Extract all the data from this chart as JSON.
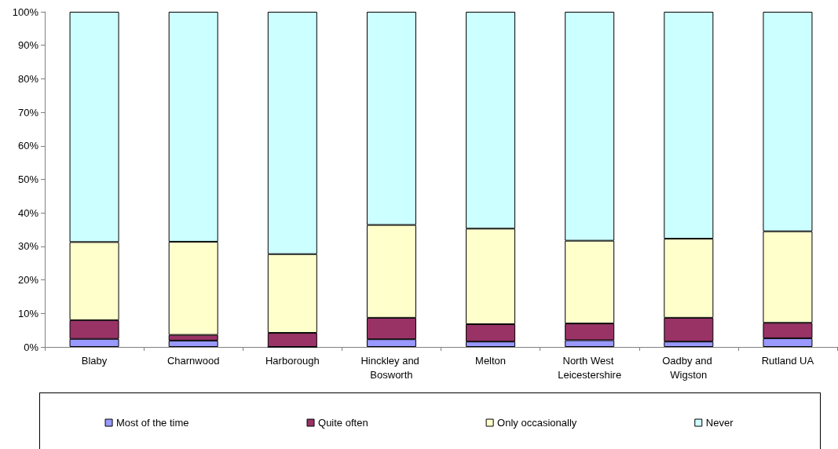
{
  "chart_data": {
    "type": "bar",
    "stacked": true,
    "categories": [
      "Blaby",
      "Charnwood",
      "Harborough",
      "Hinckley and Bosworth",
      "Melton",
      "North West Leicestershire",
      "Oadby and Wigston",
      "Rutland UA"
    ],
    "series": [
      {
        "name": "Most of the time",
        "color": "#9999ff",
        "values": [
          2.4,
          1.9,
          0,
          2.3,
          1.6,
          2.0,
          1.6,
          2.6
        ]
      },
      {
        "name": "Quite often",
        "color": "#993366",
        "values": [
          5.6,
          1.7,
          4.2,
          6.4,
          5.2,
          5.0,
          7.1,
          4.6
        ]
      },
      {
        "name": "Only occasionally",
        "color": "#ffffcc",
        "values": [
          23.3,
          27.8,
          23.5,
          27.7,
          28.5,
          24.7,
          23.6,
          27.3
        ]
      },
      {
        "name": "Never",
        "color": "#ccffff",
        "values": [
          68.7,
          68.6,
          72.3,
          63.6,
          64.7,
          68.3,
          67.7,
          65.5
        ]
      }
    ],
    "ylim": [
      0,
      100
    ],
    "yticks": [
      {
        "value": 0,
        "label": "0%"
      },
      {
        "value": 10,
        "label": "10%"
      },
      {
        "value": 20,
        "label": "20%"
      },
      {
        "value": 30,
        "label": "30%"
      },
      {
        "value": 40,
        "label": "40%"
      },
      {
        "value": 50,
        "label": "50%"
      },
      {
        "value": 60,
        "label": "60%"
      },
      {
        "value": 70,
        "label": "70%"
      },
      {
        "value": 80,
        "label": "80%"
      },
      {
        "value": 90,
        "label": "90%"
      },
      {
        "value": 100,
        "label": "100%"
      }
    ],
    "grid": false,
    "legend": "bottom"
  }
}
